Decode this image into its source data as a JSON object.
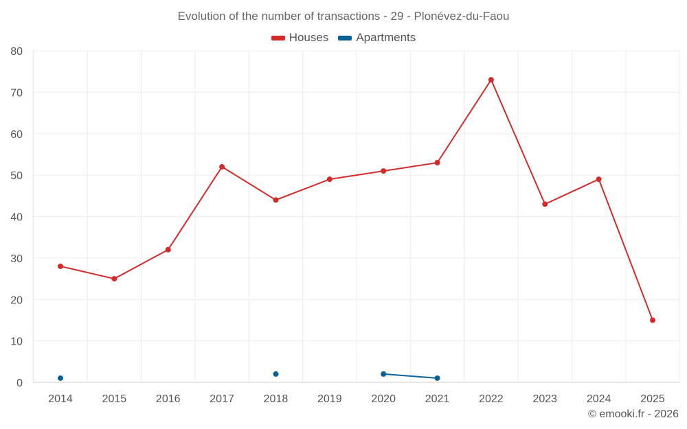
{
  "chart_data": {
    "type": "line",
    "title": "Evolution of the number of transactions - 29 - Plonévez-du-Faou",
    "xlabel": "",
    "ylabel": "",
    "categories": [
      "2014",
      "2015",
      "2016",
      "2017",
      "2018",
      "2019",
      "2020",
      "2021",
      "2022",
      "2023",
      "2024",
      "2025"
    ],
    "ylim": [
      0,
      80
    ],
    "yticks": [
      0,
      10,
      20,
      30,
      40,
      50,
      60,
      70,
      80
    ],
    "grid": true,
    "legend_position": "top-center",
    "series": [
      {
        "name": "Houses",
        "color": "#d42a2a",
        "values": [
          28,
          25,
          32,
          52,
          44,
          49,
          51,
          53,
          73,
          43,
          49,
          15
        ]
      },
      {
        "name": "Apartments",
        "color": "#0b6196",
        "values": [
          1,
          null,
          null,
          null,
          2,
          null,
          2,
          1,
          null,
          null,
          null,
          null
        ]
      }
    ]
  },
  "footer": {
    "copyright": "© emooki.fr - 2026"
  }
}
